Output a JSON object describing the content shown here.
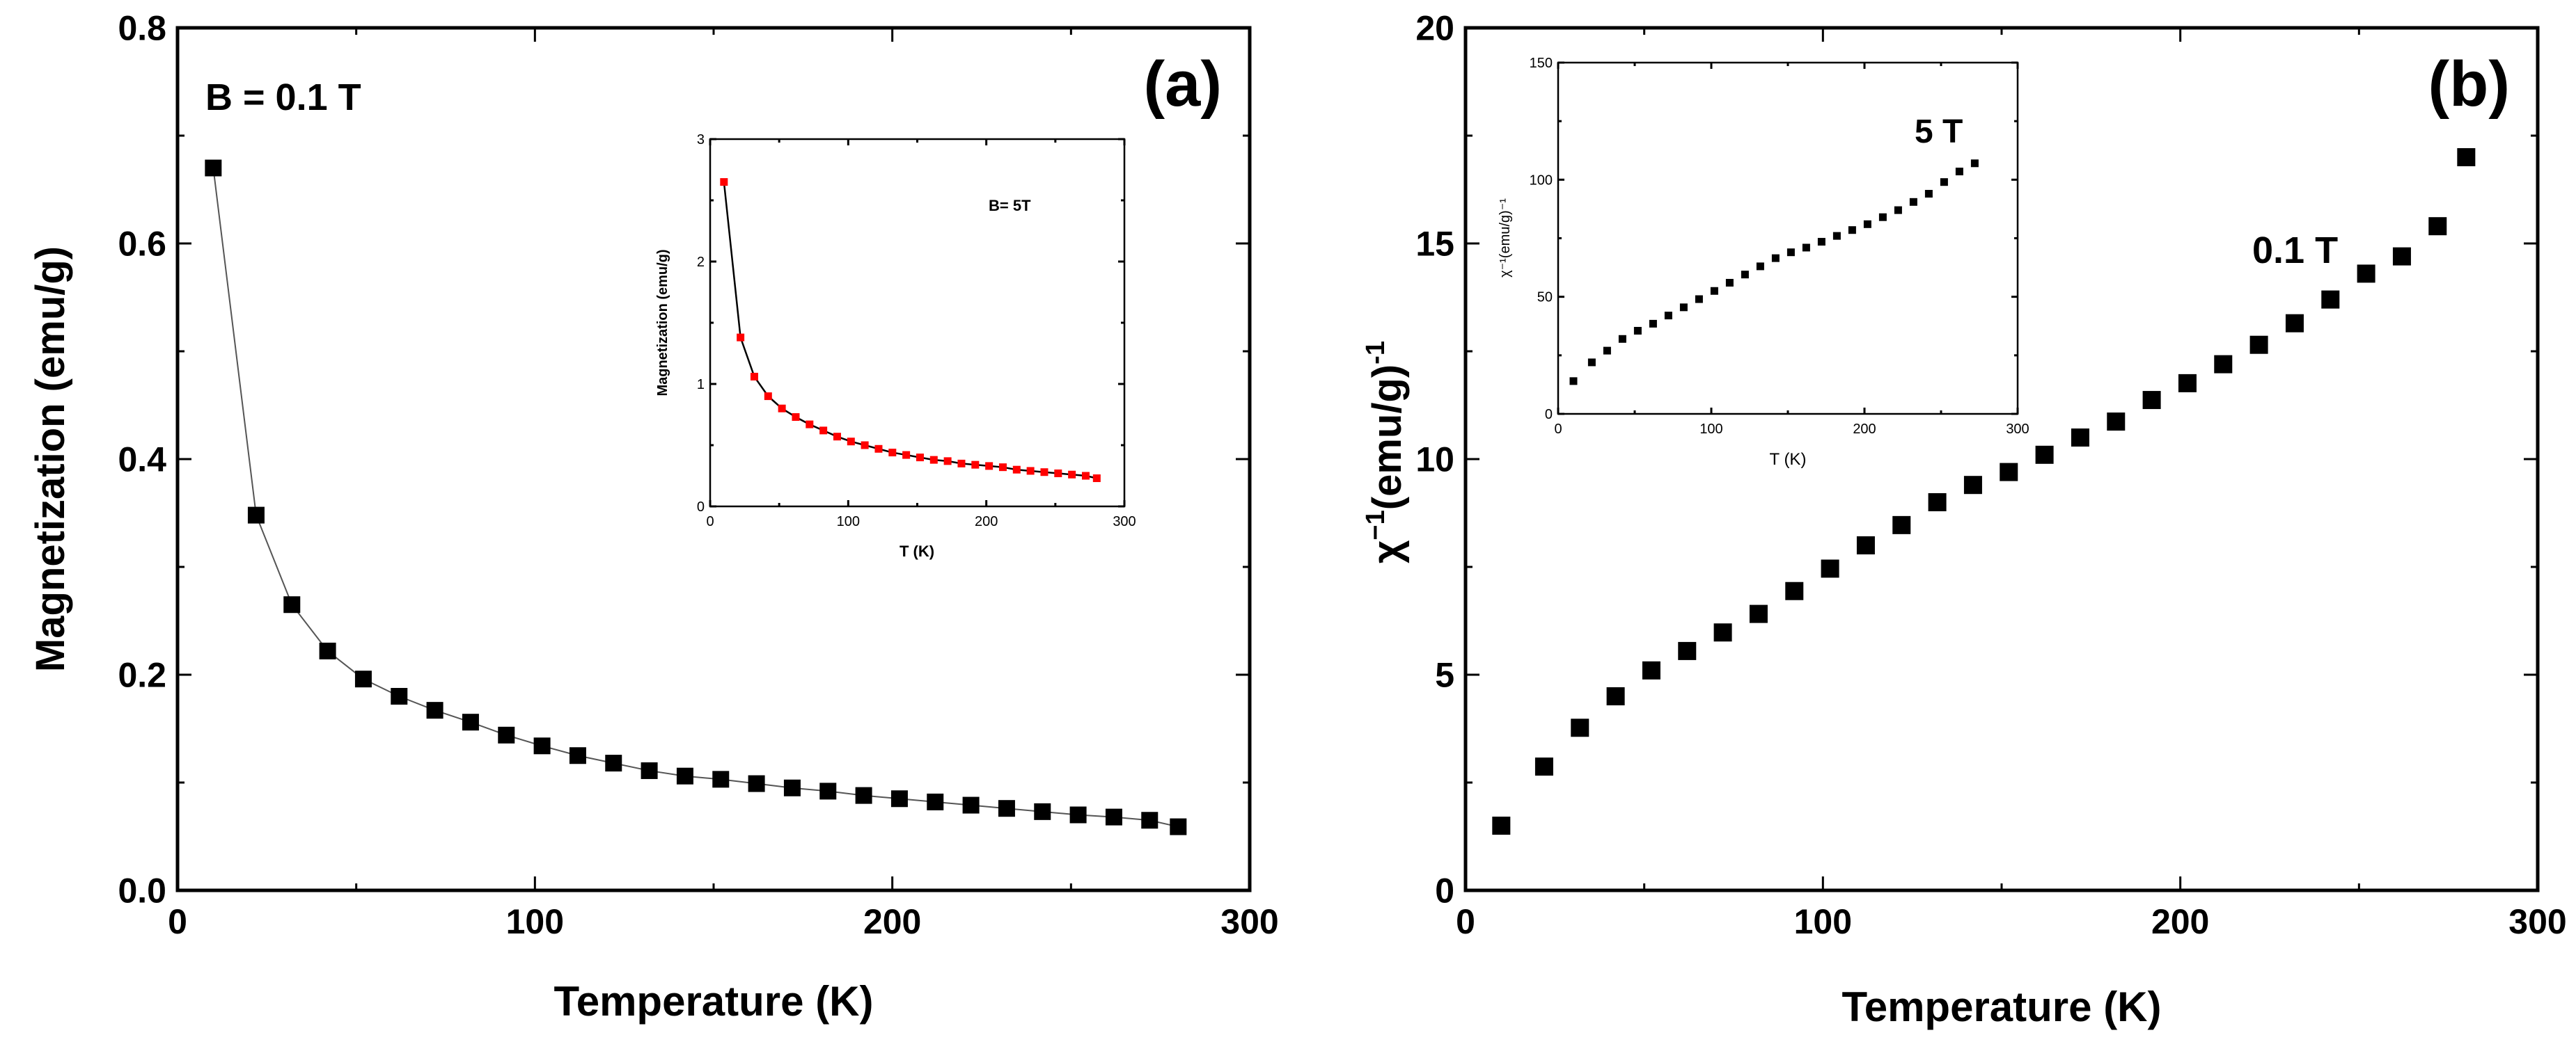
{
  "chart_data": [
    {
      "id": "a",
      "type": "line",
      "panel_label": "(a)",
      "annotation": "B = 0.1 T",
      "xlabel": "Temperature (K)",
      "ylabel": "Magnetization (emu/g)",
      "xlim": [
        0,
        300
      ],
      "ylim": [
        0,
        0.8
      ],
      "xticks": [
        "0",
        "100",
        "200",
        "300"
      ],
      "yticks": [
        "0.0",
        "0.2",
        "0.4",
        "0.6",
        "0.8"
      ],
      "grid": false,
      "series": [
        {
          "name": "B = 0.1 T",
          "marker": "square",
          "color": "#000000",
          "x": [
            10,
            22,
            32,
            42,
            52,
            62,
            72,
            82,
            92,
            102,
            112,
            122,
            132,
            142,
            152,
            162,
            172,
            182,
            192,
            202,
            212,
            222,
            232,
            242,
            252,
            262,
            272,
            280
          ],
          "y": [
            0.67,
            0.348,
            0.265,
            0.222,
            0.196,
            0.18,
            0.167,
            0.156,
            0.144,
            0.134,
            0.125,
            0.118,
            0.111,
            0.106,
            0.103,
            0.099,
            0.095,
            0.092,
            0.088,
            0.085,
            0.082,
            0.079,
            0.076,
            0.073,
            0.07,
            0.068,
            0.065,
            0.059
          ]
        }
      ]
    },
    {
      "id": "a-inset",
      "type": "line",
      "annotation": "B= 5T",
      "xlabel": "T (K)",
      "ylabel": "Magnetization (emu/g)",
      "xlim": [
        0,
        300
      ],
      "ylim": [
        0,
        3
      ],
      "xticks": [
        "0",
        "100",
        "200",
        "300"
      ],
      "yticks": [
        "0",
        "1",
        "2",
        "3"
      ],
      "grid": false,
      "series": [
        {
          "name": "B= 5T",
          "marker": "square",
          "color": "#ff0000",
          "line_color": "#000000",
          "x": [
            10,
            22,
            32,
            42,
            52,
            62,
            72,
            82,
            92,
            102,
            112,
            122,
            132,
            142,
            152,
            162,
            172,
            182,
            192,
            202,
            212,
            222,
            232,
            242,
            252,
            262,
            272,
            280
          ],
          "y": [
            2.65,
            1.38,
            1.06,
            0.9,
            0.8,
            0.73,
            0.67,
            0.62,
            0.57,
            0.53,
            0.5,
            0.47,
            0.44,
            0.42,
            0.4,
            0.38,
            0.37,
            0.35,
            0.34,
            0.33,
            0.32,
            0.3,
            0.29,
            0.28,
            0.27,
            0.26,
            0.25,
            0.23
          ]
        }
      ]
    },
    {
      "id": "b",
      "type": "scatter",
      "panel_label": "(b)",
      "annotation": "0.1 T",
      "xlabel": "Temperature (K)",
      "ylabel_main": "χ",
      "ylabel_sup": "−1",
      "ylabel_rest": "(emu/g)",
      "ylabel_sup2": "-1",
      "xlim": [
        0,
        300
      ],
      "ylim": [
        0,
        20
      ],
      "xticks": [
        "0",
        "100",
        "200",
        "300"
      ],
      "yticks": [
        "0",
        "5",
        "10",
        "15",
        "20"
      ],
      "grid": false,
      "series": [
        {
          "name": "0.1 T",
          "marker": "square",
          "color": "#000000",
          "x": [
            10,
            22,
            32,
            42,
            52,
            62,
            72,
            82,
            92,
            102,
            112,
            122,
            132,
            142,
            152,
            162,
            172,
            182,
            192,
            202,
            212,
            222,
            232,
            242,
            252,
            262,
            272,
            280
          ],
          "y": [
            1.5,
            2.87,
            3.77,
            4.5,
            5.1,
            5.55,
            5.98,
            6.41,
            6.94,
            7.46,
            8.0,
            8.47,
            9.0,
            9.4,
            9.7,
            10.1,
            10.5,
            10.87,
            11.37,
            11.76,
            12.2,
            12.65,
            13.15,
            13.7,
            14.3,
            14.7,
            15.4,
            17.0
          ]
        }
      ]
    },
    {
      "id": "b-inset",
      "type": "scatter",
      "annotation": "5 T",
      "xlabel": "T (K)",
      "ylabel": "χ⁻¹(emu/g)⁻¹",
      "xlim": [
        0,
        300
      ],
      "ylim": [
        0,
        150
      ],
      "xticks": [
        "0",
        "100",
        "200",
        "300"
      ],
      "yticks": [
        "0",
        "50",
        "100",
        "150"
      ],
      "grid": false,
      "series": [
        {
          "name": "5 T",
          "marker": "square",
          "color": "#000000",
          "x": [
            10,
            22,
            32,
            42,
            52,
            62,
            72,
            82,
            92,
            102,
            112,
            122,
            132,
            142,
            152,
            162,
            172,
            182,
            192,
            202,
            212,
            222,
            232,
            242,
            252,
            262,
            272
          ],
          "y": [
            14,
            22,
            27,
            32,
            35.5,
            38.5,
            42,
            45.5,
            49,
            52.5,
            56,
            59.5,
            63,
            66.5,
            69,
            71,
            73.5,
            76,
            78.5,
            81,
            84,
            87,
            90.5,
            94,
            99,
            103.5,
            107
          ]
        }
      ]
    }
  ]
}
